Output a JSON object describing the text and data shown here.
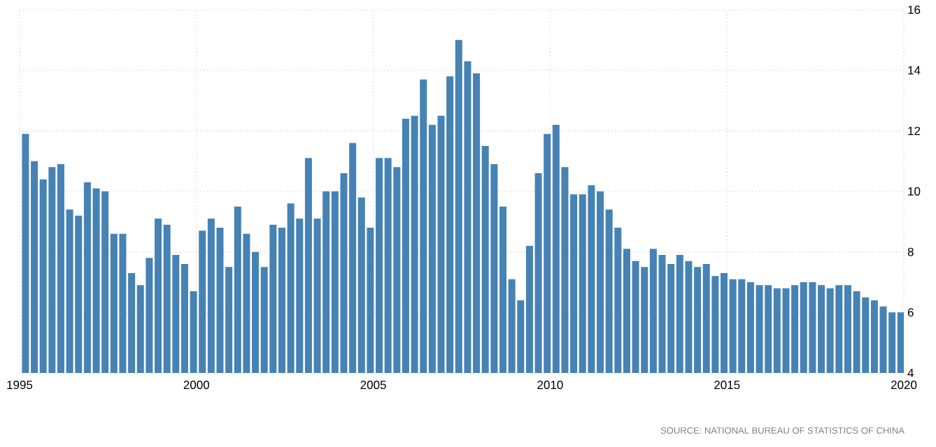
{
  "chart_data": {
    "type": "bar",
    "x": [
      "1995-03",
      "1995-06",
      "1995-09",
      "1995-12",
      "1996-03",
      "1996-06",
      "1996-09",
      "1996-12",
      "1997-03",
      "1997-06",
      "1997-09",
      "1997-12",
      "1998-03",
      "1998-06",
      "1998-09",
      "1998-12",
      "1999-03",
      "1999-06",
      "1999-09",
      "1999-12",
      "2000-03",
      "2000-06",
      "2000-09",
      "2000-12",
      "2001-03",
      "2001-06",
      "2001-09",
      "2001-12",
      "2002-03",
      "2002-06",
      "2002-09",
      "2002-12",
      "2003-03",
      "2003-06",
      "2003-09",
      "2003-12",
      "2004-03",
      "2004-06",
      "2004-09",
      "2004-12",
      "2005-03",
      "2005-06",
      "2005-09",
      "2005-12",
      "2006-03",
      "2006-06",
      "2006-09",
      "2006-12",
      "2007-03",
      "2007-06",
      "2007-09",
      "2007-12",
      "2008-03",
      "2008-06",
      "2008-09",
      "2008-12",
      "2009-03",
      "2009-06",
      "2009-09",
      "2009-12",
      "2010-03",
      "2010-06",
      "2010-09",
      "2010-12",
      "2011-03",
      "2011-06",
      "2011-09",
      "2011-12",
      "2012-03",
      "2012-06",
      "2012-09",
      "2012-12",
      "2013-03",
      "2013-06",
      "2013-09",
      "2013-12",
      "2014-03",
      "2014-06",
      "2014-09",
      "2014-12",
      "2015-03",
      "2015-06",
      "2015-09",
      "2015-12",
      "2016-03",
      "2016-06",
      "2016-09",
      "2016-12",
      "2017-03",
      "2017-06",
      "2017-09",
      "2017-12",
      "2018-03",
      "2018-06",
      "2018-09",
      "2018-12",
      "2019-03",
      "2019-06",
      "2019-09",
      "2019-12"
    ],
    "values": [
      11.9,
      11.0,
      10.4,
      10.8,
      10.9,
      9.4,
      9.2,
      10.3,
      10.1,
      10.0,
      8.6,
      8.6,
      7.3,
      6.9,
      7.8,
      9.1,
      8.9,
      7.9,
      7.6,
      6.7,
      8.7,
      9.1,
      8.8,
      7.5,
      9.5,
      8.6,
      8.0,
      7.5,
      8.9,
      8.8,
      9.6,
      9.1,
      11.1,
      9.1,
      10.0,
      10.0,
      10.6,
      11.6,
      9.8,
      8.8,
      11.1,
      11.1,
      10.8,
      12.4,
      12.5,
      13.7,
      12.2,
      12.5,
      13.8,
      15.0,
      14.3,
      13.9,
      11.5,
      10.9,
      9.5,
      7.1,
      6.4,
      8.2,
      10.6,
      11.9,
      12.2,
      10.8,
      9.9,
      9.9,
      10.2,
      10.0,
      9.4,
      8.8,
      8.1,
      7.7,
      7.5,
      8.1,
      7.9,
      7.6,
      7.9,
      7.7,
      7.5,
      7.6,
      7.2,
      7.3,
      7.1,
      7.1,
      7.0,
      6.9,
      6.9,
      6.8,
      6.8,
      6.9,
      7.0,
      7.0,
      6.9,
      6.8,
      6.9,
      6.9,
      6.7,
      6.5,
      6.4,
      6.2,
      6.0,
      6.0
    ],
    "color": "#4682b4",
    "xlim": [
      "1995",
      "2020"
    ],
    "xticks": [
      "1995",
      "2000",
      "2005",
      "2010",
      "2015",
      "2020"
    ],
    "ylim": [
      4,
      16
    ],
    "yticks": [
      4,
      6,
      8,
      10,
      12,
      14,
      16
    ],
    "grid": true,
    "annotations": [
      "SOURCE: NATIONAL BUREAU OF STATISTICS OF CHINA"
    ]
  }
}
